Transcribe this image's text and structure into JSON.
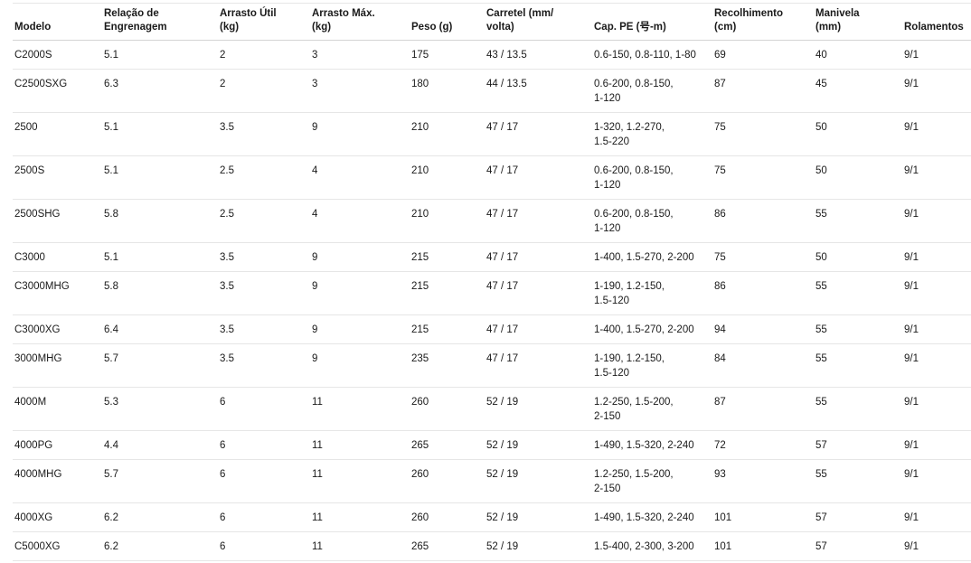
{
  "chart_data": {
    "type": "table",
    "title": "",
    "columns": [
      "Modelo",
      "Relação de\nEngrenagem",
      "Arrasto Útil\n(kg)",
      "Arrasto Máx.\n(kg)",
      "Peso (g)",
      "Carretel (mm/\nvolta)",
      "Cap. PE (号-m)",
      "Recolhimento\n(cm)",
      "Manivela\n(mm)",
      "Rolamentos"
    ],
    "rows": [
      [
        "C2000S",
        "5.1",
        "2",
        "3",
        "175",
        "43 / 13.5",
        "0.6-150, 0.8-110, 1-80",
        "69",
        "40",
        "9/1"
      ],
      [
        "C2500SXG",
        "6.3",
        "2",
        "3",
        "180",
        "44 / 13.5",
        "0.6-200, 0.8-150,\n1-120",
        "87",
        "45",
        "9/1"
      ],
      [
        "2500",
        "5.1",
        "3.5",
        "9",
        "210",
        "47 / 17",
        "1-320, 1.2-270,\n1.5-220",
        "75",
        "50",
        "9/1"
      ],
      [
        "2500S",
        "5.1",
        "2.5",
        "4",
        "210",
        "47 / 17",
        "0.6-200, 0.8-150,\n1-120",
        "75",
        "50",
        "9/1"
      ],
      [
        "2500SHG",
        "5.8",
        "2.5",
        "4",
        "210",
        "47 / 17",
        "0.6-200, 0.8-150,\n1-120",
        "86",
        "55",
        "9/1"
      ],
      [
        "C3000",
        "5.1",
        "3.5",
        "9",
        "215",
        "47 / 17",
        "1-400, 1.5-270, 2-200",
        "75",
        "50",
        "9/1"
      ],
      [
        "C3000MHG",
        "5.8",
        "3.5",
        "9",
        "215",
        "47 / 17",
        "1-190, 1.2-150,\n1.5-120",
        "86",
        "55",
        "9/1"
      ],
      [
        "C3000XG",
        "6.4",
        "3.5",
        "9",
        "215",
        "47 / 17",
        "1-400, 1.5-270, 2-200",
        "94",
        "55",
        "9/1"
      ],
      [
        "3000MHG",
        "5.7",
        "3.5",
        "9",
        "235",
        "47 / 17",
        "1-190, 1.2-150,\n1.5-120",
        "84",
        "55",
        "9/1"
      ],
      [
        "4000M",
        "5.3",
        "6",
        "11",
        "260",
        "52 / 19",
        "1.2-250, 1.5-200,\n2-150",
        "87",
        "55",
        "9/1"
      ],
      [
        "4000PG",
        "4.4",
        "6",
        "11",
        "265",
        "52 / 19",
        "1-490, 1.5-320, 2-240",
        "72",
        "57",
        "9/1"
      ],
      [
        "4000MHG",
        "5.7",
        "6",
        "11",
        "260",
        "52 / 19",
        "1.2-250, 1.5-200,\n2-150",
        "93",
        "55",
        "9/1"
      ],
      [
        "4000XG",
        "6.2",
        "6",
        "11",
        "260",
        "52 / 19",
        "1-490, 1.5-320, 2-240",
        "101",
        "57",
        "9/1"
      ],
      [
        "C5000XG",
        "6.2",
        "6",
        "11",
        "265",
        "52 / 19",
        "1.5-400, 2-300, 3-200",
        "101",
        "57",
        "9/1"
      ]
    ],
    "colors": {
      "text": "#1a1a1a",
      "background": "#ffffff",
      "row_border": "#e6e6e6",
      "header_border": "#d4d4d4"
    },
    "layout_hints": {
      "grid": "horizontal row separators only",
      "header_alignment": "bottom",
      "cell_alignment": "top-left"
    }
  }
}
